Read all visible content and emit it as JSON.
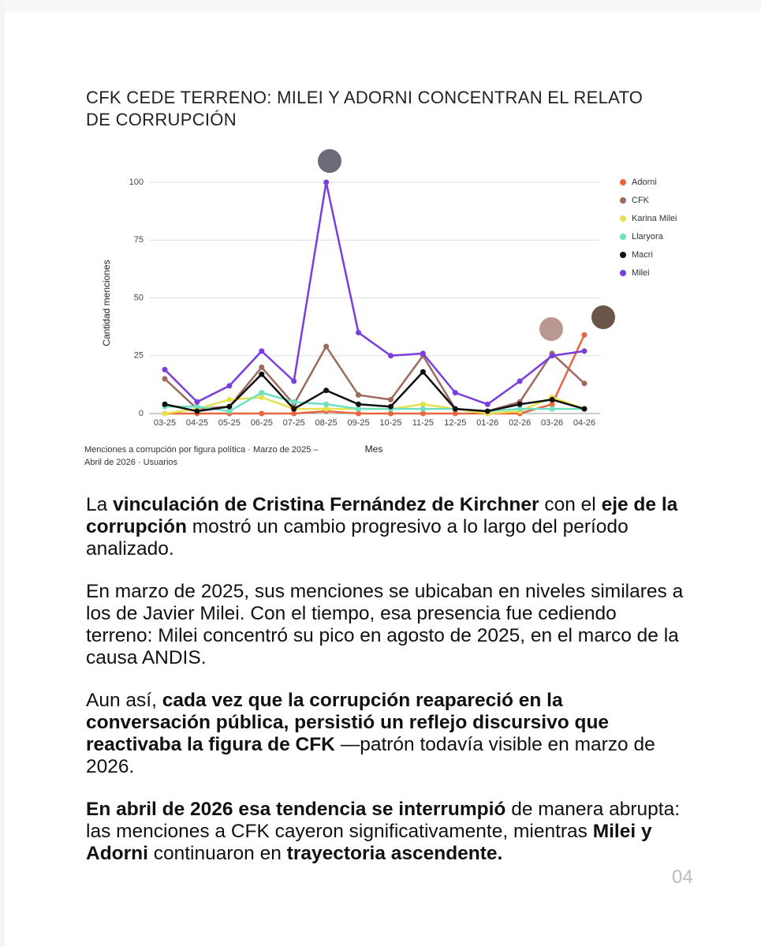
{
  "title": "CFK CEDE TERRENO: MILEI Y ADORNI CONCENTRAN EL RELATO DE CORRUPCIÓN",
  "chart_data": {
    "type": "line",
    "ylabel": "Cantidad menciones",
    "xlabel": "Mes",
    "categories": [
      "03-25",
      "04-25",
      "05-25",
      "06-25",
      "07-25",
      "08-25",
      "09-25",
      "10-25",
      "11-25",
      "12-25",
      "01-26",
      "02-26",
      "03-26",
      "04-26"
    ],
    "ylim": [
      0,
      100
    ],
    "yticks": [
      0,
      25,
      50,
      75,
      100
    ],
    "grid": true,
    "legend": "right",
    "series": [
      {
        "name": "Adorni",
        "color": "#e8663d",
        "values": [
          0,
          0,
          0,
          0,
          0,
          1,
          0,
          0,
          0,
          0,
          0,
          0,
          4,
          34
        ]
      },
      {
        "name": "CFK",
        "color": "#9c6b5d",
        "values": [
          15,
          2,
          3,
          20,
          4,
          29,
          8,
          6,
          25,
          2,
          1,
          5,
          26,
          13
        ]
      },
      {
        "name": "Karina Milei",
        "color": "#e6e24c",
        "values": [
          0,
          2,
          6,
          7,
          2,
          2,
          2,
          2,
          4,
          2,
          0,
          1,
          7,
          2
        ]
      },
      {
        "name": "Llaryora",
        "color": "#6fe0c0",
        "values": [
          3,
          3,
          1,
          9,
          5,
          4,
          2,
          2,
          2,
          2,
          1,
          2,
          2,
          2
        ]
      },
      {
        "name": "Macri",
        "color": "#111111",
        "values": [
          4,
          1,
          3,
          17,
          2,
          10,
          4,
          3,
          18,
          2,
          1,
          4,
          6,
          2
        ]
      },
      {
        "name": "Milei",
        "color": "#7a3de0",
        "values": [
          19,
          5,
          12,
          27,
          14,
          100,
          35,
          25,
          26,
          9,
          4,
          14,
          25,
          27
        ]
      }
    ]
  },
  "caption": "Menciones a corrupción por figura política · Marzo de 2025 – Abril de 2026 · Usuarios",
  "paragraphs": [
    [
      {
        "text": "La ",
        "bold": false
      },
      {
        "text": "vinculación de Cristina Fernández de Kirchner",
        "bold": true
      },
      {
        "text": " con el ",
        "bold": false
      },
      {
        "text": "eje de la corrupción",
        "bold": true
      },
      {
        "text": " mostró un cambio progresivo a lo largo del período analizado.",
        "bold": false
      }
    ],
    [
      {
        "text": "En marzo de 2025, sus menciones se ubicaban en niveles similares a los de Javier Milei. Con el tiempo, esa presencia fue cediendo terreno: Milei concentró su pico en agosto de 2025, en el marco de la causa ANDIS.",
        "bold": false
      }
    ],
    [
      {
        "text": "Aun así, ",
        "bold": false
      },
      {
        "text": "cada vez que la corrupción reapareció en la conversación pública, persistió un reflejo discursivo que reactivaba la figura de CFK",
        "bold": true
      },
      {
        "text": " —patrón todavía visible en marzo de 2026.",
        "bold": false
      }
    ],
    [
      {
        "text": "En abril de 2026 esa tendencia se interrumpió",
        "bold": true
      },
      {
        "text": " de manera abrupta: las menciones a CFK cayeron significativamente, mientras ",
        "bold": false
      },
      {
        "text": "Milei y Adorni",
        "bold": true
      },
      {
        "text": " continuaron en ",
        "bold": false
      },
      {
        "text": "trayectoria ascendente.",
        "bold": true
      }
    ]
  ],
  "page_number": "04"
}
